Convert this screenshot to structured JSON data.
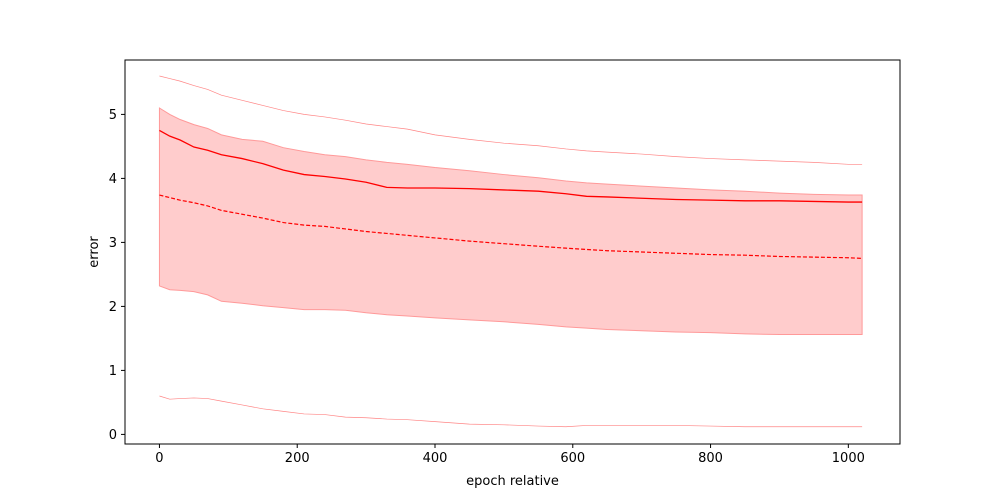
{
  "chart_data": {
    "type": "line",
    "title": "",
    "xlabel": "epoch relative",
    "ylabel": "error",
    "xlim": [
      -50,
      1075
    ],
    "ylim": [
      -0.15,
      5.85
    ],
    "grid": false,
    "xticks": [
      0,
      200,
      400,
      600,
      800,
      1000
    ],
    "yticks": [
      0,
      1,
      2,
      3,
      4,
      5
    ],
    "colors": {
      "line": "#ff0000",
      "band": "#ffcccc",
      "band_edge": "#ff9999",
      "outer": "#ff6666"
    },
    "x": [
      0,
      15,
      30,
      50,
      70,
      90,
      120,
      150,
      180,
      210,
      240,
      270,
      300,
      330,
      360,
      400,
      450,
      500,
      550,
      590,
      620,
      650,
      700,
      750,
      800,
      850,
      900,
      950,
      1000,
      1020
    ],
    "series": [
      {
        "role": "mean",
        "style": "solid",
        "values": [
          4.75,
          4.66,
          4.6,
          4.49,
          4.44,
          4.37,
          4.31,
          4.23,
          4.13,
          4.06,
          4.03,
          3.99,
          3.94,
          3.86,
          3.85,
          3.85,
          3.84,
          3.82,
          3.8,
          3.76,
          3.72,
          3.71,
          3.69,
          3.67,
          3.66,
          3.65,
          3.65,
          3.64,
          3.63,
          3.63
        ]
      },
      {
        "role": "median",
        "style": "dashed",
        "values": [
          3.74,
          3.7,
          3.66,
          3.62,
          3.57,
          3.5,
          3.44,
          3.38,
          3.31,
          3.27,
          3.25,
          3.21,
          3.17,
          3.14,
          3.11,
          3.07,
          3.02,
          2.98,
          2.94,
          2.91,
          2.89,
          2.87,
          2.85,
          2.83,
          2.81,
          2.8,
          2.78,
          2.77,
          2.76,
          2.75
        ]
      },
      {
        "role": "band-upper",
        "style": "fill",
        "values": [
          5.1,
          5.0,
          4.92,
          4.84,
          4.78,
          4.68,
          4.61,
          4.58,
          4.48,
          4.42,
          4.37,
          4.34,
          4.29,
          4.25,
          4.22,
          4.17,
          4.12,
          4.06,
          4.01,
          3.96,
          3.93,
          3.91,
          3.88,
          3.85,
          3.82,
          3.8,
          3.77,
          3.75,
          3.74,
          3.74
        ]
      },
      {
        "role": "band-lower",
        "style": "fill",
        "values": [
          2.32,
          2.26,
          2.25,
          2.23,
          2.18,
          2.08,
          2.05,
          2.01,
          1.98,
          1.95,
          1.95,
          1.94,
          1.9,
          1.87,
          1.85,
          1.82,
          1.79,
          1.76,
          1.72,
          1.68,
          1.66,
          1.64,
          1.62,
          1.6,
          1.59,
          1.57,
          1.56,
          1.56,
          1.56,
          1.56
        ]
      },
      {
        "role": "outer-upper",
        "style": "thin",
        "values": [
          5.6,
          5.56,
          5.52,
          5.45,
          5.39,
          5.3,
          5.22,
          5.14,
          5.06,
          5.0,
          4.96,
          4.91,
          4.85,
          4.81,
          4.77,
          4.68,
          4.61,
          4.55,
          4.51,
          4.46,
          4.43,
          4.41,
          4.38,
          4.34,
          4.31,
          4.29,
          4.27,
          4.25,
          4.22,
          4.22
        ]
      },
      {
        "role": "outer-lower",
        "style": "thin",
        "values": [
          0.6,
          0.55,
          0.56,
          0.57,
          0.56,
          0.52,
          0.46,
          0.4,
          0.36,
          0.32,
          0.31,
          0.27,
          0.26,
          0.24,
          0.23,
          0.2,
          0.16,
          0.15,
          0.13,
          0.12,
          0.14,
          0.14,
          0.14,
          0.14,
          0.13,
          0.12,
          0.12,
          0.12,
          0.12,
          0.12
        ]
      }
    ]
  }
}
